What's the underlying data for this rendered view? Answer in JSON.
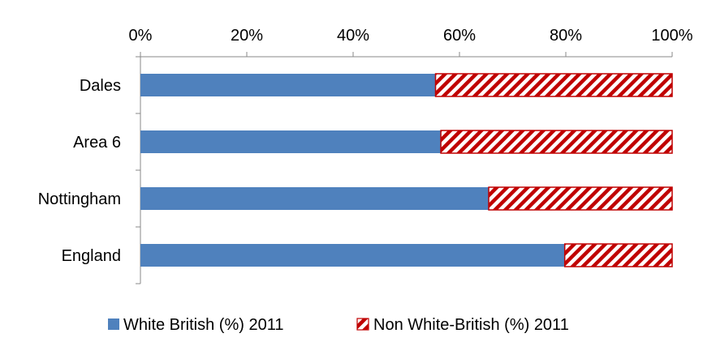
{
  "chart_data": {
    "type": "bar",
    "orientation": "horizontal",
    "stacked": "percent",
    "categories": [
      "Dales",
      "Area 6",
      "Nottingham",
      "England"
    ],
    "series": [
      {
        "name": "White British (%) 2011",
        "values": [
          55.5,
          56.5,
          65.5,
          79.8
        ],
        "color": "#4f81bd",
        "pattern": "solid"
      },
      {
        "name": "Non White-British (%) 2011",
        "values": [
          44.5,
          43.5,
          34.5,
          20.2
        ],
        "color": "#c00000",
        "pattern": "diagonal-hatch"
      }
    ],
    "x_ticks": [
      "0%",
      "20%",
      "40%",
      "60%",
      "80%",
      "100%"
    ],
    "xlim": [
      0,
      100
    ],
    "x_axis_position": "top",
    "grid": false,
    "legend_position": "bottom"
  }
}
